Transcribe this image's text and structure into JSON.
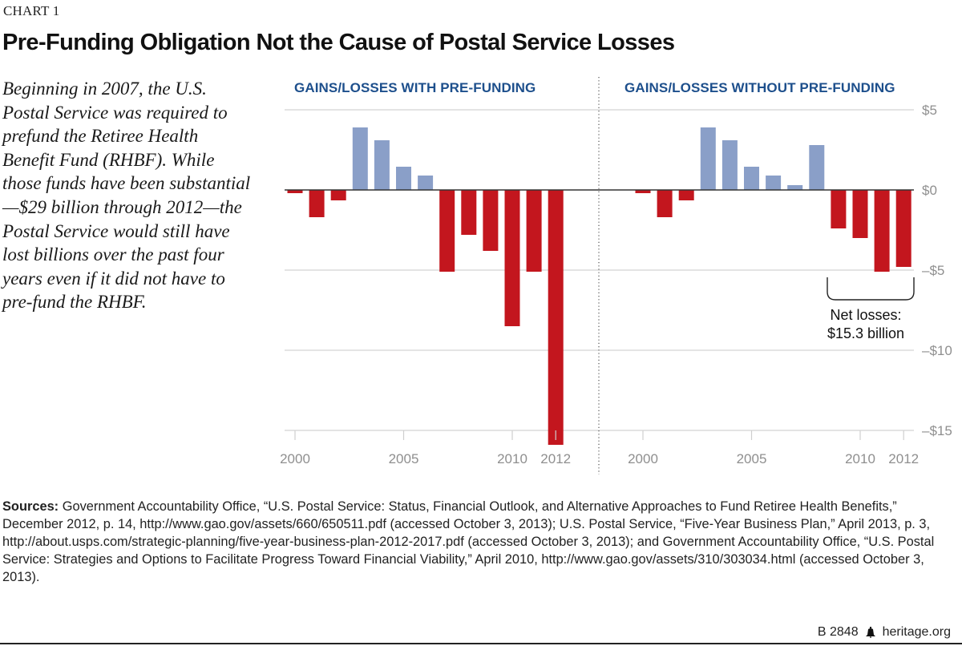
{
  "header": {
    "kicker": "CHART 1",
    "title": "Pre-Funding Obligation Not the Cause of Postal Service Losses"
  },
  "intro_text": "Beginning in 2007, the U.S. Postal Service was required to prefund the Retiree Health Benefit Fund (RHBF). While those funds have been substantial—$29 billion through 2012—the Postal Service would still have lost billions over the past four years even if it did not have to pre-fund the RHBF.",
  "colors": {
    "gain": "#8a9fc8",
    "loss": "#c3161e",
    "panel_title": "#1d4f8c",
    "grid": "#d4d4d4",
    "axis_label": "#8f8f8f"
  },
  "annotation": {
    "line1": "Net losses:",
    "line2": "$15.3 billion",
    "years_spanned": [
      2009,
      2012
    ]
  },
  "sources": {
    "label": "Sources:",
    "text": "Government Accountability Office, “U.S. Postal Service: Status, Financial Outlook, and Alternative Approaches to Fund Retiree Health Benefits,” December 2012, p. 14, http://www.gao.gov/assets/660/650511.pdf (accessed October 3, 2013); U.S. Postal Service, “Five-Year Business Plan,” April 2013, p. 3, http://about.usps.com/strategic-planning/five-year-business-plan-2012-2017.pdf (accessed October 3, 2013); and Government Accountability Office, “U.S. Postal Service: Strategies and Options to Facilitate Progress Toward Financial Viability,” April 2010, http://www.gao.gov/assets/310/303034.html (accessed October 3, 2013)."
  },
  "footer": {
    "report_id": "B 2848",
    "site": "heritage.org",
    "icon": "liberty-bell-icon"
  },
  "chart_data": [
    {
      "type": "bar",
      "title": "GAINS/LOSSES WITH PRE-FUNDING",
      "xlabel": "",
      "ylabel": "",
      "unit": "billions of dollars",
      "categories": [
        2000,
        2001,
        2002,
        2003,
        2004,
        2005,
        2006,
        2007,
        2008,
        2009,
        2010,
        2011,
        2012
      ],
      "values": [
        -0.2,
        -1.7,
        -0.65,
        3.9,
        3.1,
        1.45,
        0.9,
        -5.1,
        -2.8,
        -3.8,
        -8.5,
        -5.1,
        -15.9
      ],
      "x_tick_labels": [
        "2000",
        "2005",
        "2010",
        "2012"
      ],
      "x_ticks": [
        2000,
        2005,
        2010,
        2012
      ],
      "y_tick_labels": [
        "$5",
        "$0",
        "–$5",
        "–$10",
        "–$15"
      ],
      "y_ticks": [
        5,
        0,
        -5,
        -10,
        -15
      ],
      "ylim": [
        -15.9,
        5
      ],
      "grid": true
    },
    {
      "type": "bar",
      "title": "GAINS/LOSSES WITHOUT PRE-FUNDING",
      "xlabel": "",
      "ylabel": "",
      "unit": "billions of dollars",
      "categories": [
        2000,
        2001,
        2002,
        2003,
        2004,
        2005,
        2006,
        2007,
        2008,
        2009,
        2010,
        2011,
        2012
      ],
      "values": [
        -0.2,
        -1.7,
        -0.65,
        3.9,
        3.1,
        1.45,
        0.9,
        0.3,
        2.8,
        -2.4,
        -3.0,
        -5.1,
        -4.8
      ],
      "x_tick_labels": [
        "2000",
        "2005",
        "2010",
        "2012"
      ],
      "x_ticks": [
        2000,
        2005,
        2010,
        2012
      ],
      "y_tick_labels": [
        "$5",
        "$0",
        "–$5",
        "–$10",
        "–$15"
      ],
      "y_ticks": [
        5,
        0,
        -5,
        -10,
        -15
      ],
      "ylim": [
        -15.9,
        5
      ],
      "y_axis_side": "right",
      "grid": true
    }
  ]
}
